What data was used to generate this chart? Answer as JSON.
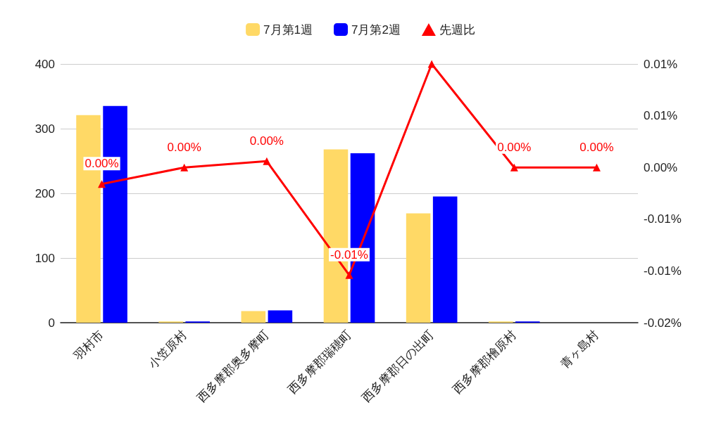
{
  "chart_data": {
    "type": "bar",
    "categories": [
      "羽村市",
      "小笠原村",
      "西多摩郡奥多摩町",
      "西多摩郡瑞穂町",
      "西多摩郡日の出町",
      "西多摩郡檜原村",
      "青ヶ島村"
    ],
    "series": [
      {
        "name": "7月第1週",
        "color": "#ffd966",
        "values": [
          321,
          2,
          18,
          268,
          169,
          2,
          0
        ]
      },
      {
        "name": "7月第2週",
        "color": "#0000ff",
        "values": [
          335,
          2,
          19,
          262,
          195,
          2,
          0
        ]
      },
      {
        "name": "先週比",
        "type": "line",
        "axis": "y2",
        "color": "#ff0000",
        "values": [
          -0.0016,
          0,
          0.0006,
          -0.0104,
          0.01,
          0,
          0
        ],
        "value_labels": [
          "0.00%",
          "0.00%",
          "0.00%",
          "-0.01%",
          null,
          "0.00%",
          "0.00%"
        ]
      }
    ],
    "ylim": [
      0,
      400
    ],
    "yticks": [
      0,
      100,
      200,
      300,
      400
    ],
    "y2lim": [
      -0.015,
      0.01
    ],
    "y2ticks": [
      {
        "value": -0.015,
        "label": "-0.02%"
      },
      {
        "value": -0.01,
        "label": "-0.01%"
      },
      {
        "value": -0.005,
        "label": "-0.01%"
      },
      {
        "value": 0,
        "label": "0.00%"
      },
      {
        "value": 0.005,
        "label": "0.01%"
      },
      {
        "value": 0.01,
        "label": "0.01%"
      }
    ],
    "grid": "y",
    "legend": "top",
    "marker": "triangle",
    "line_style": "solid"
  }
}
